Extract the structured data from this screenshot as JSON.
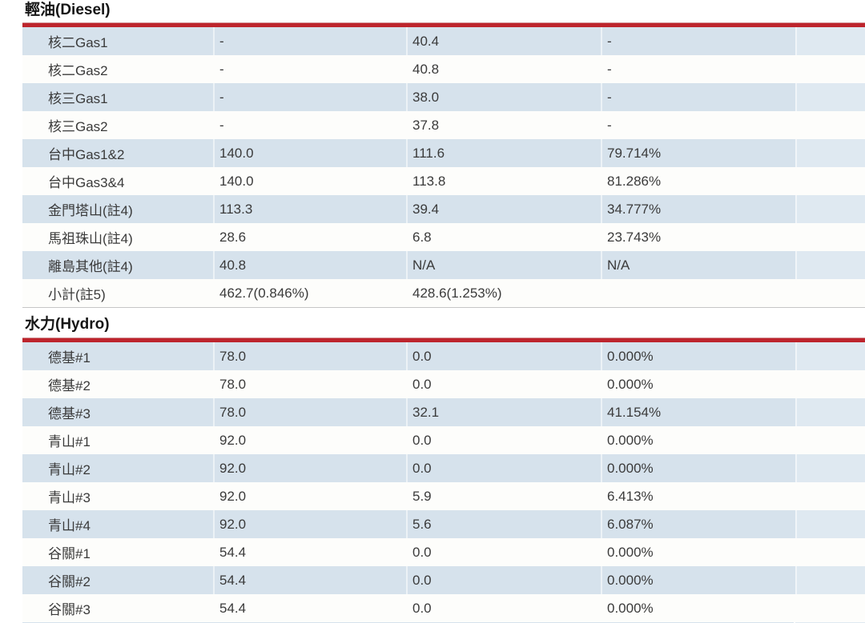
{
  "table": {
    "sections": [
      {
        "id": "diesel",
        "title": "輕油(Diesel)",
        "rows": [
          {
            "name": "核二Gas1",
            "capacity": "-",
            "generation": "40.4",
            "ratio": "-"
          },
          {
            "name": "核二Gas2",
            "capacity": "-",
            "generation": "40.8",
            "ratio": "-"
          },
          {
            "name": "核三Gas1",
            "capacity": "-",
            "generation": "38.0",
            "ratio": "-"
          },
          {
            "name": "核三Gas2",
            "capacity": "-",
            "generation": "37.8",
            "ratio": "-"
          },
          {
            "name": "台中Gas1&2",
            "capacity": "140.0",
            "generation": "111.6",
            "ratio": "79.714%"
          },
          {
            "name": "台中Gas3&4",
            "capacity": "140.0",
            "generation": "113.8",
            "ratio": "81.286%"
          },
          {
            "name": "金門塔山(註4)",
            "capacity": "113.3",
            "generation": "39.4",
            "ratio": "34.777%"
          },
          {
            "name": "馬祖珠山(註4)",
            "capacity": "28.6",
            "generation": "6.8",
            "ratio": "23.743%"
          },
          {
            "name": "離島其他(註4)",
            "capacity": "40.8",
            "generation": "N/A",
            "ratio": "N/A"
          },
          {
            "name": "小計(註5)",
            "capacity": "462.7(0.846%)",
            "generation": "428.6(1.253%)",
            "ratio": ""
          }
        ]
      },
      {
        "id": "hydro",
        "title": "水力(Hydro)",
        "rows": [
          {
            "name": "德基#1",
            "capacity": "78.0",
            "generation": "0.0",
            "ratio": "0.000%"
          },
          {
            "name": "德基#2",
            "capacity": "78.0",
            "generation": "0.0",
            "ratio": "0.000%"
          },
          {
            "name": "德基#3",
            "capacity": "78.0",
            "generation": "32.1",
            "ratio": "41.154%"
          },
          {
            "name": "青山#1",
            "capacity": "92.0",
            "generation": "0.0",
            "ratio": "0.000%"
          },
          {
            "name": "青山#2",
            "capacity": "92.0",
            "generation": "0.0",
            "ratio": "0.000%"
          },
          {
            "name": "青山#3",
            "capacity": "92.0",
            "generation": "5.9",
            "ratio": "6.413%"
          },
          {
            "name": "青山#4",
            "capacity": "92.0",
            "generation": "5.6",
            "ratio": "6.087%"
          },
          {
            "name": "谷關#1",
            "capacity": "54.4",
            "generation": "0.0",
            "ratio": "0.000%"
          },
          {
            "name": "谷關#2",
            "capacity": "54.4",
            "generation": "0.0",
            "ratio": "0.000%"
          },
          {
            "name": "谷關#3",
            "capacity": "54.4",
            "generation": "0.0",
            "ratio": "0.000%"
          }
        ],
        "partial_next_row_visible": true
      }
    ],
    "colors": {
      "section_underline_red": "#bd242c",
      "row_stripe_blue": "#d6e2ec",
      "row_stripe_blue_lighter": "#dfe9f1",
      "row_stripe_white": "#fdfdfb",
      "section_divider_grey": "#c6c6c6",
      "cell_text": "#3a3a3a",
      "title_text": "#151515"
    }
  }
}
